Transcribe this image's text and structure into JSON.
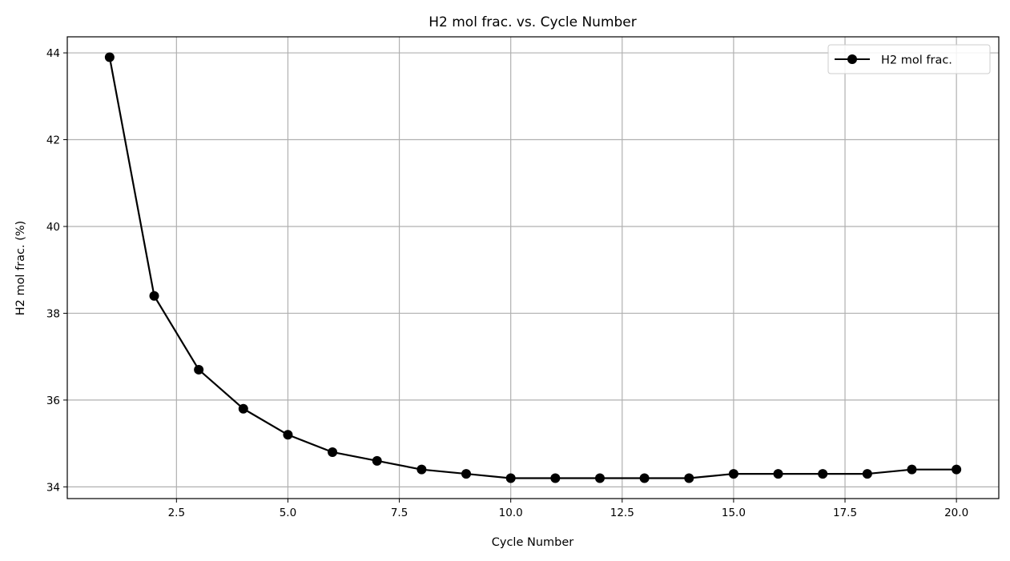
{
  "chart_data": {
    "type": "line",
    "title": "H2 mol frac. vs. Cycle Number",
    "xlabel": "Cycle Number",
    "ylabel": "H2 mol frac. (%)",
    "xlim": [
      0.05,
      20.95
    ],
    "ylim": [
      33.73,
      44.37
    ],
    "xticks": [
      2.5,
      5.0,
      7.5,
      10.0,
      12.5,
      15.0,
      17.5,
      20.0
    ],
    "xtick_labels": [
      "2.5",
      "5.0",
      "7.5",
      "10.0",
      "12.5",
      "15.0",
      "17.5",
      "20.0"
    ],
    "yticks": [
      34,
      36,
      38,
      40,
      42,
      44
    ],
    "ytick_labels": [
      "34",
      "36",
      "38",
      "40",
      "42",
      "44"
    ],
    "grid": true,
    "legend_position": "top-right",
    "series": [
      {
        "name": "H2 mol frac.",
        "color": "#000000",
        "marker": "circle",
        "x": [
          1,
          2,
          3,
          4,
          5,
          6,
          7,
          8,
          9,
          10,
          11,
          12,
          13,
          14,
          15,
          16,
          17,
          18,
          19,
          20
        ],
        "y": [
          43.9,
          38.4,
          36.7,
          35.8,
          35.2,
          34.8,
          34.6,
          34.4,
          34.3,
          34.2,
          34.2,
          34.2,
          34.2,
          34.2,
          34.3,
          34.3,
          34.3,
          34.3,
          34.4,
          34.4
        ]
      }
    ]
  }
}
